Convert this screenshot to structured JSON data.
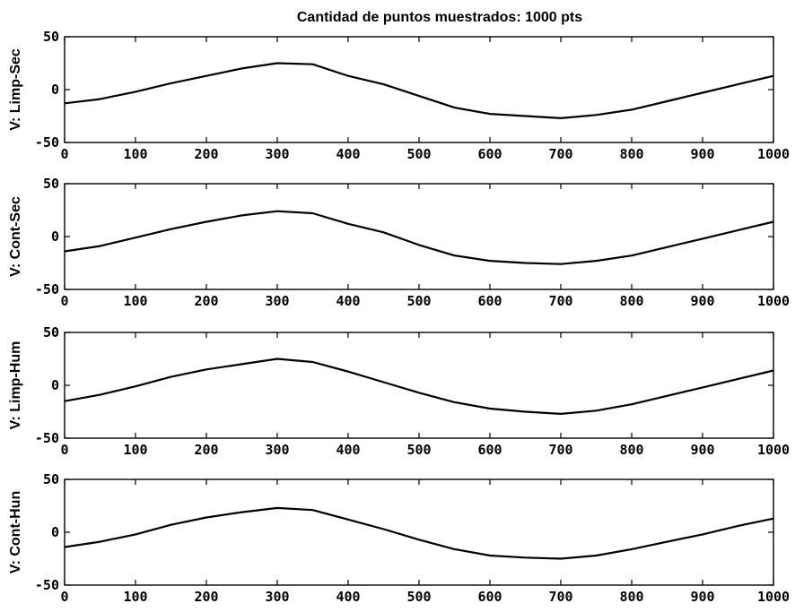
{
  "figure": {
    "title": "Cantidad de puntos muestrados: 1000 pts"
  },
  "chart_data": [
    {
      "type": "line",
      "ylabel": "V: Limp-Sec",
      "xlabel": "",
      "xlim": [
        0,
        1000
      ],
      "ylim": [
        -50,
        50
      ],
      "x_ticks": [
        "0",
        "100",
        "200",
        "300",
        "400",
        "500",
        "600",
        "700",
        "800",
        "900",
        "1000"
      ],
      "y_ticks": [
        "50",
        "0",
        "-50"
      ],
      "series": [
        {
          "x": [
            0,
            50,
            100,
            150,
            200,
            250,
            300,
            350,
            400,
            450,
            500,
            550,
            600,
            650,
            700,
            750,
            800,
            850,
            900,
            950,
            1000
          ],
          "values": [
            -13,
            -9,
            -2,
            6,
            13,
            20,
            25,
            24,
            13,
            5,
            -6,
            -17,
            -23,
            -25,
            -27,
            -24,
            -19,
            -11,
            -3,
            5,
            13
          ]
        }
      ]
    },
    {
      "type": "line",
      "ylabel": "V: Cont-Sec",
      "xlabel": "",
      "xlim": [
        0,
        1000
      ],
      "ylim": [
        -50,
        50
      ],
      "x_ticks": [
        "0",
        "100",
        "200",
        "300",
        "400",
        "500",
        "600",
        "700",
        "800",
        "900",
        "1000"
      ],
      "y_ticks": [
        "50",
        "0",
        "-50"
      ],
      "series": [
        {
          "x": [
            0,
            50,
            100,
            150,
            200,
            250,
            300,
            350,
            400,
            450,
            500,
            550,
            600,
            650,
            700,
            750,
            800,
            850,
            900,
            950,
            1000
          ],
          "values": [
            -14,
            -9,
            -1,
            7,
            14,
            20,
            24,
            22,
            12,
            4,
            -8,
            -18,
            -23,
            -25,
            -26,
            -23,
            -18,
            -10,
            -2,
            6,
            14
          ]
        }
      ]
    },
    {
      "type": "line",
      "ylabel": "V: Limp-Hum",
      "xlabel": "",
      "xlim": [
        0,
        1000
      ],
      "ylim": [
        -50,
        50
      ],
      "x_ticks": [
        "0",
        "100",
        "200",
        "300",
        "400",
        "500",
        "600",
        "700",
        "800",
        "900",
        "1000"
      ],
      "y_ticks": [
        "50",
        "0",
        "-50"
      ],
      "series": [
        {
          "x": [
            0,
            50,
            100,
            150,
            200,
            250,
            300,
            350,
            400,
            450,
            500,
            550,
            600,
            650,
            700,
            750,
            800,
            850,
            900,
            950,
            1000
          ],
          "values": [
            -15,
            -9,
            -1,
            8,
            15,
            20,
            25,
            22,
            13,
            3,
            -7,
            -16,
            -22,
            -25,
            -27,
            -24,
            -18,
            -10,
            -2,
            6,
            14
          ]
        }
      ]
    },
    {
      "type": "line",
      "ylabel": "V: Cont-Hun",
      "xlabel": "",
      "xlim": [
        0,
        1000
      ],
      "ylim": [
        -50,
        50
      ],
      "x_ticks": [
        "0",
        "100",
        "200",
        "300",
        "400",
        "500",
        "600",
        "700",
        "800",
        "900",
        "1000"
      ],
      "y_ticks": [
        "50",
        "0",
        "-50"
      ],
      "series": [
        {
          "x": [
            0,
            50,
            100,
            150,
            200,
            250,
            300,
            350,
            400,
            450,
            500,
            550,
            600,
            650,
            700,
            750,
            800,
            850,
            900,
            950,
            1000
          ],
          "values": [
            -14,
            -9,
            -2,
            7,
            14,
            19,
            23,
            21,
            12,
            3,
            -7,
            -16,
            -22,
            -24,
            -25,
            -22,
            -16,
            -9,
            -2,
            6,
            13
          ]
        }
      ]
    }
  ]
}
